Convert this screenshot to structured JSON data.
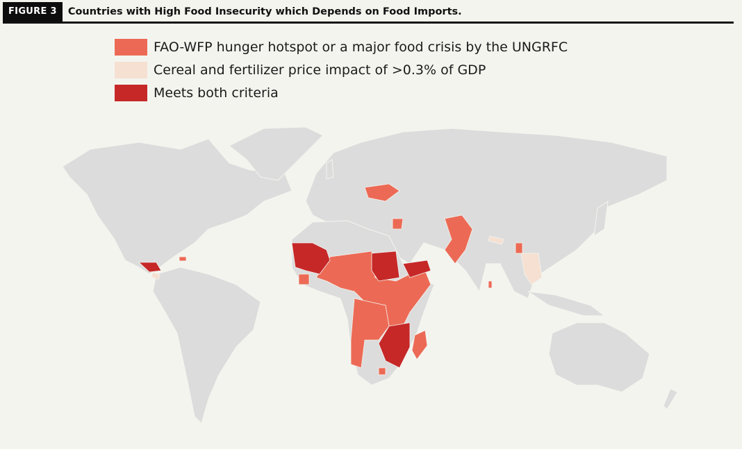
{
  "figure_label": "FIGURE 3",
  "title": "Countries with High Food Insecurity which Depends on Food Imports.",
  "legend": [
    {
      "label": "FAO-WFP hunger hotspot or a major food crisis by the UNGRFC",
      "color": "#ec6a55"
    },
    {
      "label": "Cereal and fertilizer price impact of >0.3% of GDP",
      "color": "#f5e0d2"
    },
    {
      "label": "Meets both criteria",
      "color": "#c62828"
    }
  ],
  "colors": {
    "land": "#dcdcdc",
    "background": "#f4f4ef"
  }
}
